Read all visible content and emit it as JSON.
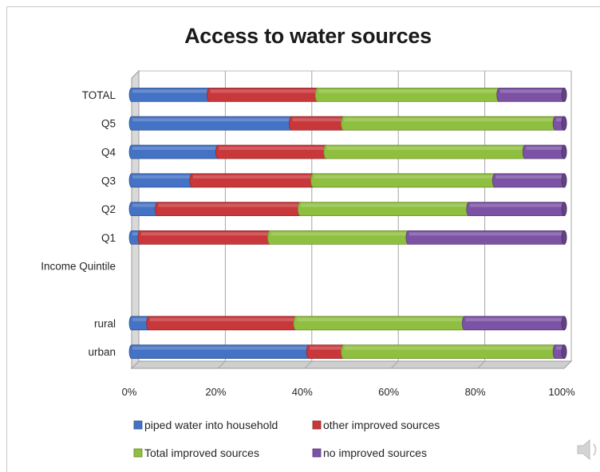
{
  "chart_data": {
    "type": "bar",
    "orientation": "horizontal",
    "stacked": true,
    "title": "Access to water sources",
    "categories": [
      "TOTAL",
      "Q5",
      "Q4",
      "Q3",
      "Q2",
      "Q1",
      "Income Quintile",
      "",
      "rural",
      "urban"
    ],
    "series": [
      {
        "name": "piped water into household",
        "values": [
          18,
          37,
          20,
          14,
          6,
          2,
          null,
          null,
          4,
          41
        ]
      },
      {
        "name": "other improved sources",
        "values": [
          25,
          12,
          25,
          28,
          33,
          30,
          null,
          null,
          34,
          8
        ]
      },
      {
        "name": "Total improved sources",
        "values": [
          42,
          49,
          46,
          42,
          39,
          32,
          null,
          null,
          39,
          49
        ]
      },
      {
        "name": "no improved sources",
        "values": [
          15,
          2,
          9,
          16,
          22,
          36,
          null,
          null,
          23,
          2
        ]
      }
    ],
    "x_ticks": [
      "0%",
      "20%",
      "40%",
      "60%",
      "80%",
      "100%"
    ],
    "xlim": [
      0,
      100
    ],
    "grid": true,
    "legend_position": "bottom",
    "colors": [
      "#4472c4",
      "#c8373a",
      "#8fbf3f",
      "#7c52a5"
    ]
  },
  "decoration": {
    "speaker_icon": "speaker-icon"
  }
}
